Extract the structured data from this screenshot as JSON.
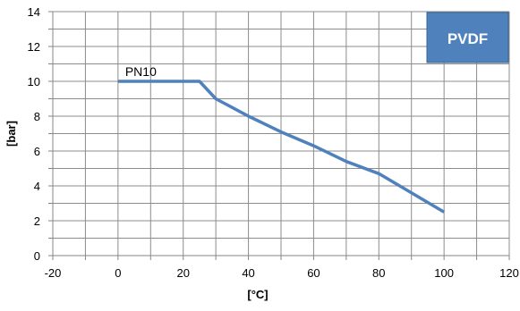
{
  "chart_data": {
    "type": "line",
    "xlabel": "[°C]",
    "ylabel": "[bar]",
    "xlim": [
      -20,
      120
    ],
    "ylim": [
      0,
      14
    ],
    "x_ticks": [
      -20,
      0,
      20,
      40,
      60,
      80,
      100,
      120
    ],
    "y_ticks": [
      0,
      2,
      4,
      6,
      8,
      10,
      12,
      14
    ],
    "x_minor_step": 10,
    "y_minor_step": 1,
    "grid": true,
    "series": [
      {
        "name": "PN10",
        "color": "#4F81BD",
        "x": [
          0,
          25,
          30,
          40,
          50,
          60,
          70,
          80,
          90,
          100
        ],
        "y": [
          10,
          10,
          9,
          8,
          7.1,
          6.3,
          5.4,
          4.7,
          3.6,
          2.5
        ]
      }
    ],
    "badge": {
      "text": "PVDF",
      "color": "#4F81BD",
      "border_color": "#3A6593",
      "text_color": "#ffffff"
    }
  }
}
